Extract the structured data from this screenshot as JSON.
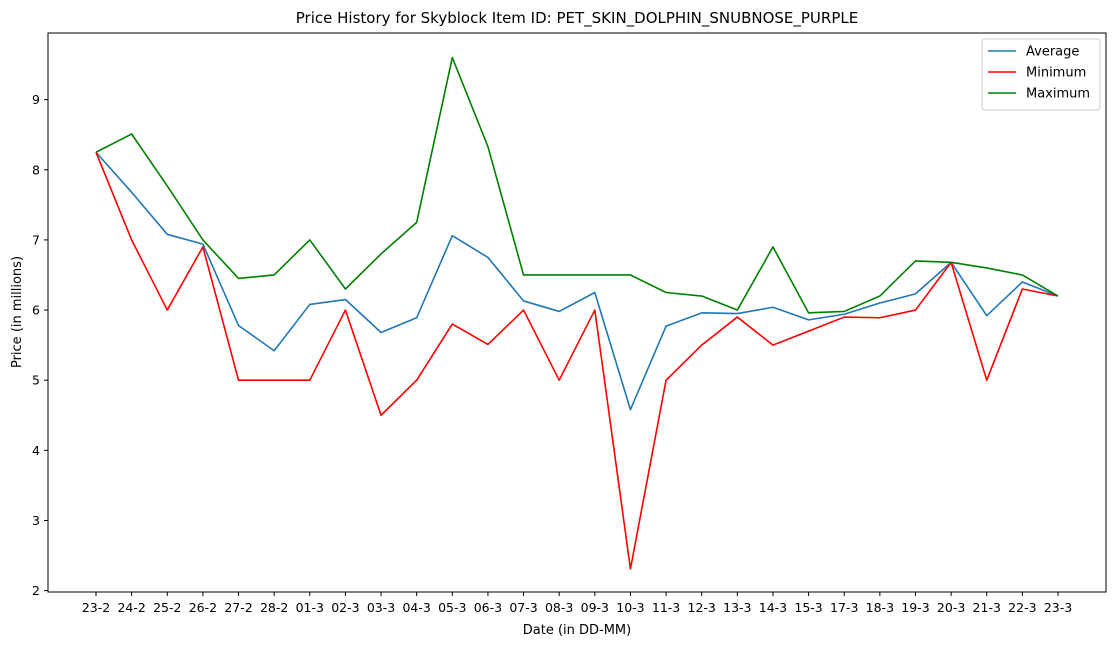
{
  "chart_data": {
    "type": "line",
    "title": "Price History for Skyblock Item ID: PET_SKIN_DOLPHIN_SNUBNOSE_PURPLE",
    "xlabel": "Date (in DD-MM)",
    "ylabel": "Price (in millions)",
    "categories": [
      "23-2",
      "24-2",
      "25-2",
      "26-2",
      "27-2",
      "28-2",
      "01-3",
      "02-3",
      "03-3",
      "04-3",
      "05-3",
      "06-3",
      "07-3",
      "08-3",
      "09-3",
      "10-3",
      "11-3",
      "12-3",
      "13-3",
      "14-3",
      "15-3",
      "17-3",
      "18-3",
      "19-3",
      "20-3",
      "21-3",
      "22-3",
      "23-3"
    ],
    "ylim": [
      1.98,
      9.95
    ],
    "yticks": [
      2,
      3,
      4,
      5,
      6,
      7,
      8,
      9
    ],
    "grid": false,
    "legend_position": "top-right",
    "series": [
      {
        "name": "Average",
        "color": "#1f77b4",
        "values": [
          8.25,
          7.68,
          7.08,
          6.94,
          5.78,
          5.42,
          6.08,
          6.15,
          5.68,
          5.89,
          7.06,
          6.75,
          6.13,
          5.98,
          6.25,
          4.58,
          5.77,
          5.96,
          5.95,
          6.04,
          5.86,
          5.94,
          6.1,
          6.23,
          6.68,
          5.92,
          6.4,
          6.2
        ]
      },
      {
        "name": "Minimum",
        "color": "#ff0000",
        "values": [
          8.25,
          7.0,
          6.0,
          6.9,
          5.0,
          5.0,
          5.0,
          6.0,
          4.5,
          5.0,
          5.8,
          5.51,
          6.0,
          5.0,
          6.0,
          2.31,
          5.0,
          5.5,
          5.9,
          5.5,
          5.7,
          5.9,
          5.89,
          6.0,
          6.68,
          5.0,
          6.3,
          6.2
        ]
      },
      {
        "name": "Maximum",
        "color": "#008000",
        "values": [
          8.25,
          8.51,
          7.77,
          7.0,
          6.45,
          6.5,
          7.0,
          6.3,
          6.8,
          7.25,
          9.6,
          8.33,
          6.5,
          6.5,
          6.5,
          6.5,
          6.25,
          6.2,
          6.0,
          6.9,
          5.96,
          5.98,
          6.2,
          6.7,
          6.68,
          6.6,
          6.5,
          6.2
        ]
      }
    ]
  }
}
